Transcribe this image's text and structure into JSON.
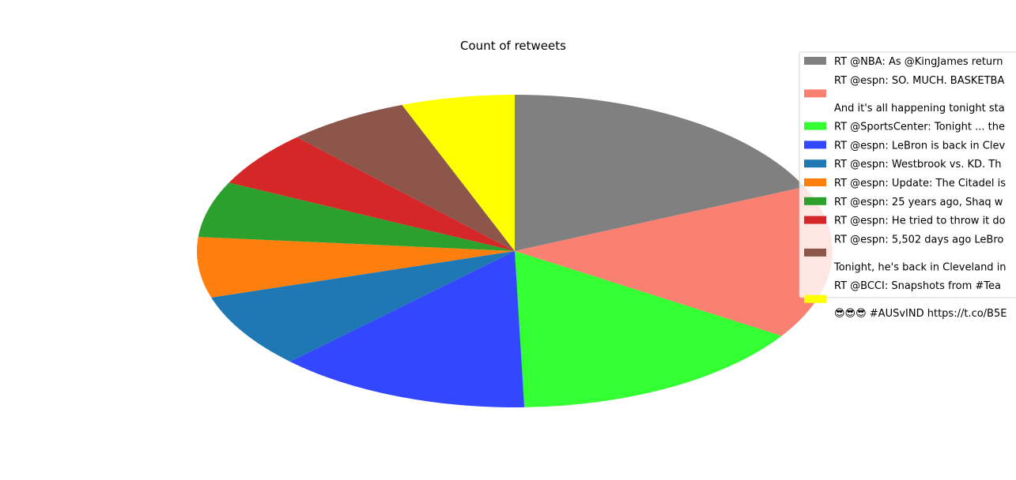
{
  "chart_data": {
    "type": "pie",
    "title": "Count of retweets",
    "start_angle_deg": 90,
    "direction": "clockwise",
    "legend_position": "right",
    "slices": [
      {
        "label_lines": [
          "RT @NBA: As @KingJames return"
        ],
        "value": 19.0,
        "color": "#808080"
      },
      {
        "label_lines": [
          "RT @espn: SO. MUCH. BASKETBA",
          "",
          "And it's all happening tonight sta"
        ],
        "value": 16.5,
        "color": "#fa8072"
      },
      {
        "label_lines": [
          "RT @SportsCenter: Tonight ... the"
        ],
        "value": 16.0,
        "color": "#33ff33"
      },
      {
        "label_lines": [
          "RT @espn: LeBron is back in Clev"
        ],
        "value": 13.5,
        "color": "#3347ff"
      },
      {
        "label_lines": [
          "RT @espn: Westbrook vs. KD. Th"
        ],
        "value": 8.0,
        "color": "#1f77b4"
      },
      {
        "label_lines": [
          "RT @espn: Update: The Citadel is"
        ],
        "value": 6.5,
        "color": "#ff7f0e"
      },
      {
        "label_lines": [
          "RT @espn: 25 years ago, Shaq w"
        ],
        "value": 6.0,
        "color": "#2ca02c"
      },
      {
        "label_lines": [
          "RT @espn: He tried to throw it do"
        ],
        "value": 6.0,
        "color": "#d62728"
      },
      {
        "label_lines": [
          "RT @espn: 5,502 days ago LeBro",
          "",
          "Tonight, he's back in Cleveland in"
        ],
        "value": 6.5,
        "color": "#8c564b"
      },
      {
        "label_lines": [
          "RT @BCCI: Snapshots from #Tea",
          "",
          "😎😎😎 #AUSvIND https://t.co/B5E"
        ],
        "value": 6.0,
        "color": "#ffff00"
      }
    ]
  }
}
